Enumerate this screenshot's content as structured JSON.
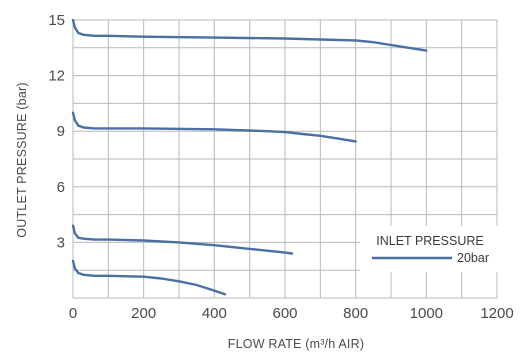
{
  "chart_data": {
    "type": "line",
    "xlabel": "FLOW RATE (m³/h AIR)",
    "ylabel": "OUTLET PRESSURE (bar)",
    "xlim": [
      0,
      1200
    ],
    "ylim": [
      0,
      15
    ],
    "x_ticks": [
      0,
      200,
      400,
      600,
      800,
      1000,
      1200
    ],
    "y_ticks": [
      3,
      6,
      9,
      12,
      15
    ],
    "grid": true,
    "grid_step_x": 100,
    "grid_step_y": 1.5,
    "legend": {
      "title": "INLET PRESSURE",
      "entries": [
        "20bar"
      ],
      "placement": "bottom-right"
    },
    "series_color": "#4a6fa5",
    "series": [
      {
        "x": [
          0,
          5,
          15,
          30,
          60,
          100,
          200,
          400,
          600,
          700,
          800,
          850,
          900,
          950,
          1000
        ],
        "y": [
          15,
          14.6,
          14.3,
          14.2,
          14.15,
          14.15,
          14.1,
          14.05,
          14.0,
          13.95,
          13.9,
          13.8,
          13.65,
          13.5,
          13.35
        ]
      },
      {
        "x": [
          0,
          5,
          15,
          30,
          60,
          100,
          200,
          400,
          550,
          600,
          650,
          700,
          750,
          800
        ],
        "y": [
          10,
          9.6,
          9.3,
          9.2,
          9.15,
          9.15,
          9.15,
          9.1,
          9.0,
          8.95,
          8.85,
          8.75,
          8.6,
          8.45
        ]
      },
      {
        "x": [
          0,
          5,
          15,
          30,
          60,
          100,
          200,
          300,
          400,
          500,
          600,
          620
        ],
        "y": [
          3.9,
          3.5,
          3.25,
          3.2,
          3.15,
          3.15,
          3.1,
          3.0,
          2.85,
          2.65,
          2.45,
          2.4
        ]
      },
      {
        "x": [
          0,
          5,
          15,
          30,
          60,
          100,
          200,
          250,
          300,
          350,
          400,
          430
        ],
        "y": [
          2.0,
          1.6,
          1.35,
          1.25,
          1.2,
          1.2,
          1.15,
          1.05,
          0.9,
          0.7,
          0.4,
          0.2
        ]
      }
    ]
  }
}
